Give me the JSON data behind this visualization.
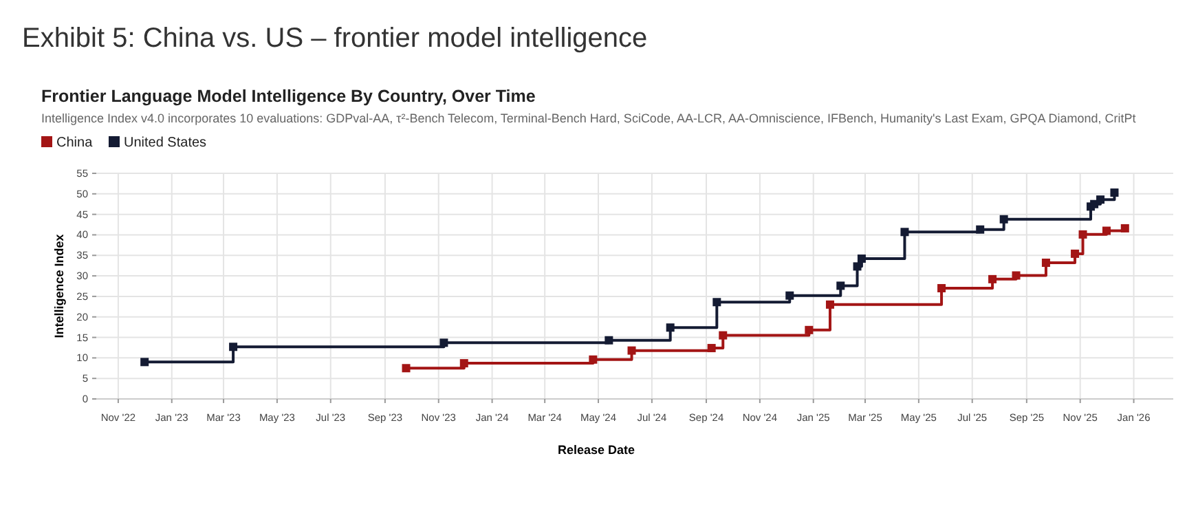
{
  "chart_data": {
    "type": "step",
    "title": "Exhibit 5:  China vs. US – frontier model intelligence",
    "subtitle": "Frontier Language Model Intelligence By Country, Over Time",
    "annotations": [
      "Intelligence Index v4.0 incorporates 10 evaluations: GDPval-AA, τ²-Bench Telecom, Terminal-Bench Hard, SciCode, AA-LCR, AA-Omniscience, IFBench, Humanity's Last Exam, GPQA Diamond, CritPt"
    ],
    "xlabel": "Release Date",
    "ylabel": "Intelligence Index",
    "xlim": [
      "2022-10-07",
      "2026-02-15"
    ],
    "ylim": [
      0,
      55
    ],
    "xticks": [
      {
        "value": "2022-11",
        "label": "Nov '22"
      },
      {
        "value": "2023-01",
        "label": "Jan '23"
      },
      {
        "value": "2023-03",
        "label": "Mar '23"
      },
      {
        "value": "2023-05",
        "label": "May '23"
      },
      {
        "value": "2023-07",
        "label": "Jul '23"
      },
      {
        "value": "2023-09",
        "label": "Sep '23"
      },
      {
        "value": "2023-11",
        "label": "Nov '23"
      },
      {
        "value": "2024-01",
        "label": "Jan '24"
      },
      {
        "value": "2024-03",
        "label": "Mar '24"
      },
      {
        "value": "2024-05",
        "label": "May '24"
      },
      {
        "value": "2024-07",
        "label": "Jul '24"
      },
      {
        "value": "2024-09",
        "label": "Sep '24"
      },
      {
        "value": "2024-11",
        "label": "Nov '24"
      },
      {
        "value": "2025-01",
        "label": "Jan '25"
      },
      {
        "value": "2025-03",
        "label": "Mar '25"
      },
      {
        "value": "2025-05",
        "label": "May '25"
      },
      {
        "value": "2025-07",
        "label": "Jul '25"
      },
      {
        "value": "2025-09",
        "label": "Sep '25"
      },
      {
        "value": "2025-11",
        "label": "Nov '25"
      },
      {
        "value": "2026-01",
        "label": "Jan '26"
      }
    ],
    "yticks": [
      0,
      5,
      10,
      15,
      20,
      25,
      30,
      35,
      40,
      45,
      50,
      55
    ],
    "grid": true,
    "legend": "top left",
    "marker": "square",
    "line_style": "solid",
    "series": [
      {
        "name": "China",
        "color": "#a31515",
        "x": [
          "2023-09-25",
          "2023-11-30",
          "2024-04-25",
          "2024-06-08",
          "2024-09-07",
          "2024-09-20",
          "2024-12-27",
          "2025-01-20",
          "2025-05-27",
          "2025-07-24",
          "2025-08-20",
          "2025-09-23",
          "2025-10-26",
          "2025-11-04",
          "2025-12-01",
          "2025-12-22"
        ],
        "values": [
          7.5,
          8.7,
          9.6,
          11.8,
          12.4,
          15.5,
          16.8,
          23.0,
          27.0,
          29.2,
          30.1,
          33.2,
          35.4,
          40.1,
          41.0,
          41.6
        ]
      },
      {
        "name": "United States",
        "color": "#141b33",
        "x": [
          "2022-12-01",
          "2023-03-12",
          "2023-11-07",
          "2024-05-13",
          "2024-07-22",
          "2024-09-13",
          "2024-12-05",
          "2025-02-01",
          "2025-02-20",
          "2025-02-25",
          "2025-04-15",
          "2025-07-10",
          "2025-08-06",
          "2025-11-13",
          "2025-11-17",
          "2025-11-24",
          "2025-12-10"
        ],
        "values": [
          9.0,
          12.7,
          13.7,
          14.3,
          17.4,
          23.6,
          25.2,
          27.6,
          32.3,
          34.2,
          40.7,
          41.3,
          43.8,
          46.9,
          47.5,
          48.6,
          50.3
        ]
      }
    ]
  }
}
